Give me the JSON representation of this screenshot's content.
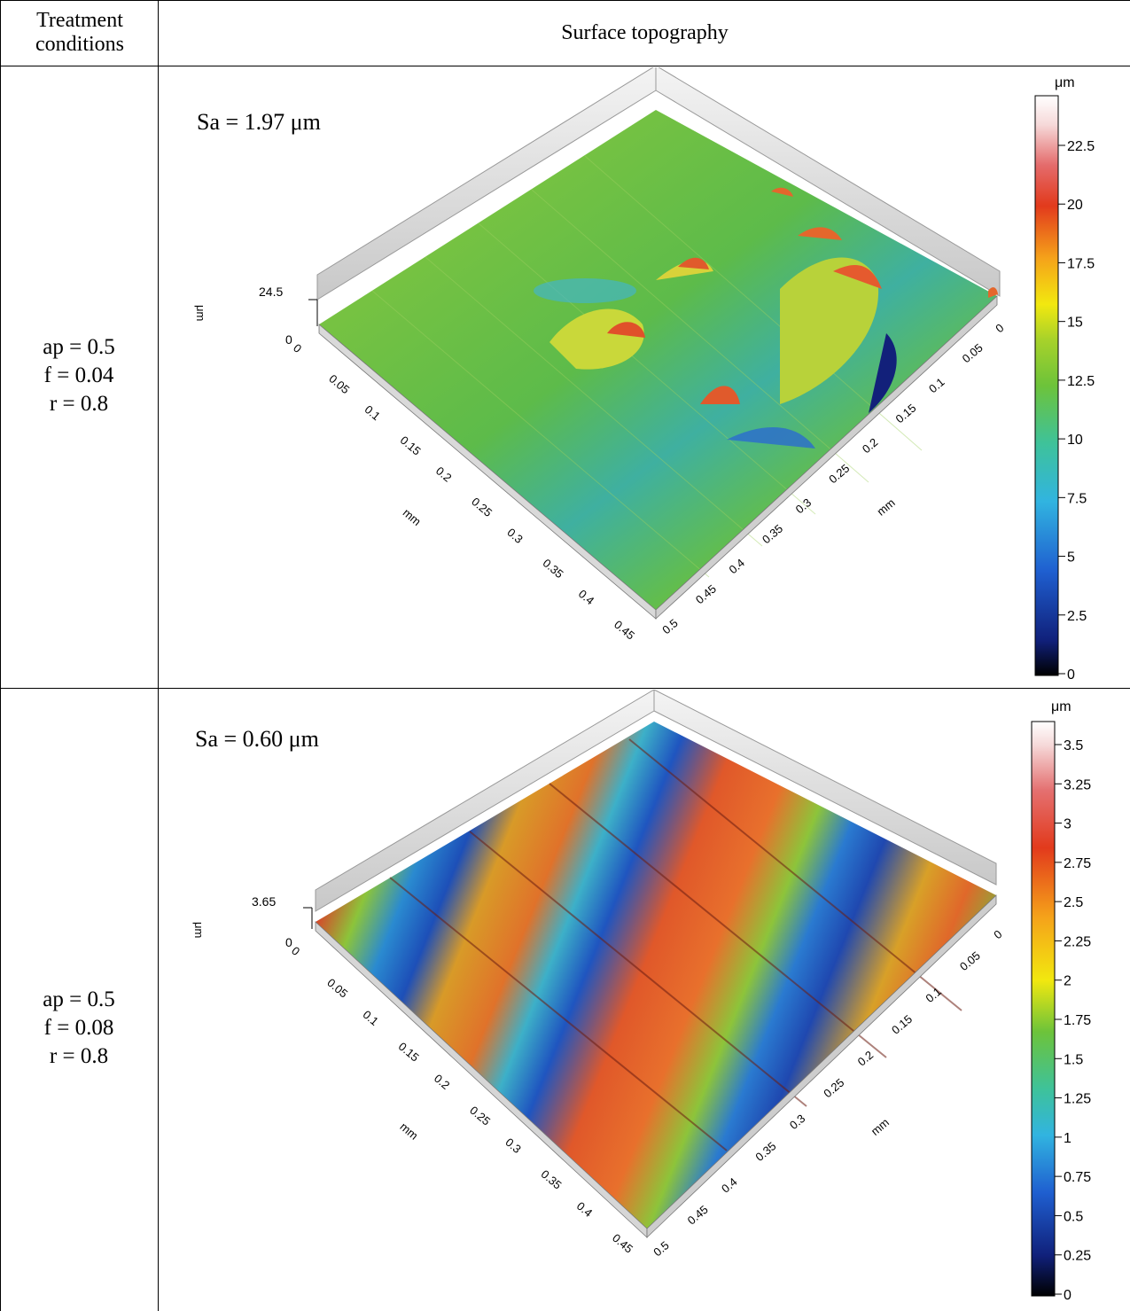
{
  "table": {
    "col1_header": "Treatment conditions",
    "col2_header": "Surface topography",
    "rows": [
      {
        "conditions": [
          "ap = 0.5",
          "f = 0.04",
          "r = 0.8"
        ],
        "sa": "Sa = 1.97 μm",
        "z_max": "24.5",
        "z_zero": "0",
        "unit": "μm",
        "axis_unit": "mm",
        "left_ticks": [
          "0",
          "0.05",
          "0.1",
          "0.15",
          "0.2",
          "0.25",
          "0.3",
          "0.35",
          "0.4",
          "0.45"
        ],
        "right_ticks": [
          "0.5",
          "0.45",
          "0.4",
          "0.35",
          "0.3",
          "0.25",
          "0.2",
          "0.15",
          "0.1",
          "0.05",
          "0"
        ],
        "colorbar_unit": "μm",
        "colorbar_ticks": [
          "22.5",
          "20",
          "17.5",
          "15",
          "12.5",
          "10",
          "7.5",
          "5",
          "2.5",
          "0"
        ]
      },
      {
        "conditions": [
          "ap = 0.5",
          "f = 0.08",
          "r = 0.8"
        ],
        "sa": "Sa = 0.60 μm",
        "z_max": "3.65",
        "z_zero": "0",
        "unit": "μm",
        "axis_unit": "mm",
        "left_ticks": [
          "0",
          "0.05",
          "0.1",
          "0.15",
          "0.2",
          "0.25",
          "0.3",
          "0.35",
          "0.4",
          "0.45"
        ],
        "right_ticks": [
          "0.5",
          "0.45",
          "0.4",
          "0.35",
          "0.3",
          "0.25",
          "0.2",
          "0.15",
          "0.1",
          "0.05",
          "0"
        ],
        "colorbar_unit": "μm",
        "colorbar_ticks": [
          "3.5",
          "3.25",
          "3",
          "2.75",
          "2.5",
          "2.25",
          "2",
          "1.75",
          "1.5",
          "1.25",
          "1",
          "0.75",
          "0.5",
          "0.25",
          "0"
        ]
      }
    ]
  }
}
